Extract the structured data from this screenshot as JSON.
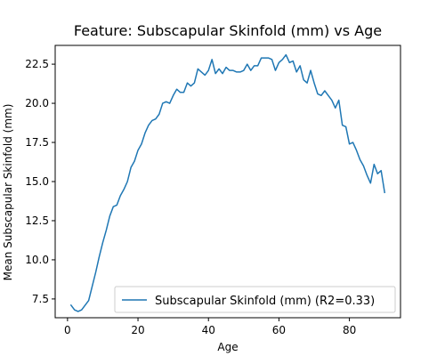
{
  "chart_data": {
    "type": "line",
    "title": "Feature: Subscapular Skinfold (mm) vs Age",
    "xlabel": "Age",
    "ylabel": "Mean Subscapular Skinfold (mm)",
    "xlim": [
      -3.5,
      94.5
    ],
    "ylim": [
      6.3,
      23.7
    ],
    "xticks": [
      0,
      20,
      40,
      60,
      80
    ],
    "yticks": [
      7.5,
      10.0,
      12.5,
      15.0,
      17.5,
      20.0,
      22.5
    ],
    "ytick_labels": [
      "7.5",
      "10.0",
      "12.5",
      "15.0",
      "17.5",
      "20.0",
      "22.5"
    ],
    "grid": false,
    "legend_position": "lower-right",
    "colors": {
      "series": "#1f77b4"
    },
    "series": [
      {
        "name": "Subscapular Skinfold (mm) (R2=0.33)",
        "x": [
          1,
          2,
          3,
          4,
          5,
          6,
          7,
          8,
          9,
          10,
          11,
          12,
          13,
          14,
          15,
          16,
          17,
          18,
          19,
          20,
          21,
          22,
          23,
          24,
          25,
          26,
          27,
          28,
          29,
          30,
          31,
          32,
          33,
          34,
          35,
          36,
          37,
          38,
          39,
          40,
          41,
          42,
          43,
          44,
          45,
          46,
          47,
          48,
          49,
          50,
          51,
          52,
          53,
          54,
          55,
          56,
          57,
          58,
          59,
          60,
          61,
          62,
          63,
          64,
          65,
          66,
          67,
          68,
          69,
          70,
          71,
          72,
          73,
          74,
          75,
          76,
          77,
          78,
          79,
          80,
          81,
          82,
          83,
          84,
          85,
          86,
          87,
          88,
          89,
          90
        ],
        "values": [
          7.1,
          6.8,
          6.7,
          6.8,
          7.1,
          7.4,
          8.3,
          9.2,
          10.2,
          11.1,
          11.9,
          12.8,
          13.4,
          13.5,
          14.1,
          14.5,
          15.0,
          15.9,
          16.3,
          17.0,
          17.4,
          18.1,
          18.6,
          18.9,
          19.0,
          19.3,
          20.0,
          20.1,
          20.0,
          20.5,
          20.9,
          20.7,
          20.7,
          21.3,
          21.1,
          21.3,
          22.2,
          22.0,
          21.8,
          22.1,
          22.8,
          21.9,
          22.2,
          21.9,
          22.3,
          22.1,
          22.1,
          22.0,
          22.0,
          22.1,
          22.5,
          22.1,
          22.4,
          22.4,
          22.9,
          22.9,
          22.9,
          22.8,
          22.1,
          22.6,
          22.8,
          23.1,
          22.6,
          22.7,
          22.0,
          22.4,
          21.5,
          21.3,
          22.1,
          21.3,
          20.6,
          20.5,
          20.8,
          20.5,
          20.2,
          19.7,
          20.2,
          18.6,
          18.5,
          17.4,
          17.5,
          17.0,
          16.4,
          16.0,
          15.4,
          14.9,
          16.1,
          15.5,
          15.7,
          14.3
        ]
      }
    ]
  }
}
